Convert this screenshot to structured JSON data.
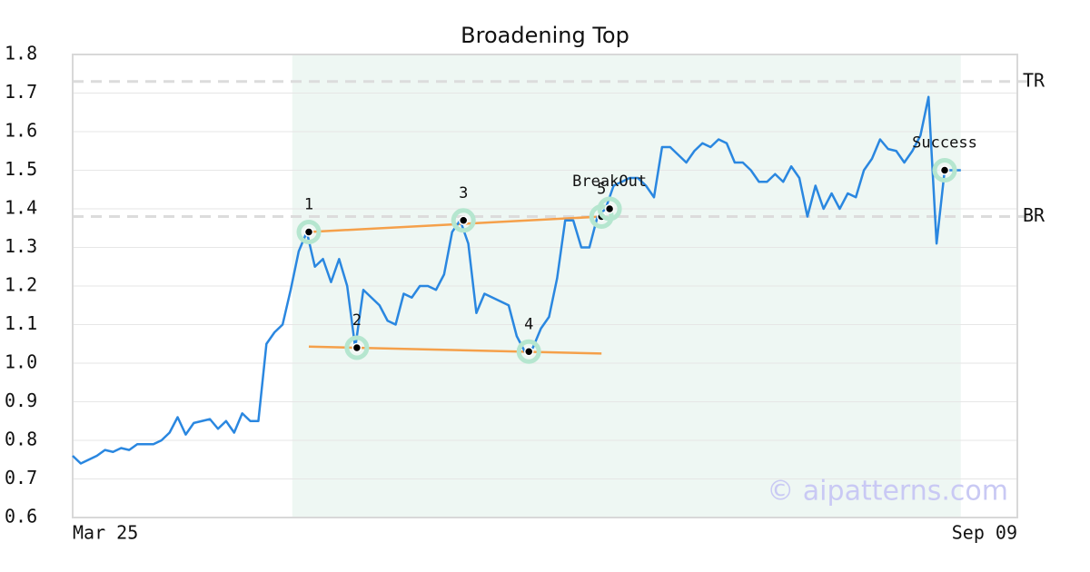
{
  "chart_data": {
    "type": "line",
    "title": "Broadening Top",
    "x": [
      0,
      1,
      2,
      3,
      4,
      5,
      6,
      7,
      8,
      9,
      10,
      11,
      12,
      13,
      14,
      15,
      16,
      17,
      18,
      19,
      20,
      21,
      22,
      23,
      24,
      25,
      26,
      27,
      28,
      29,
      30,
      31,
      32,
      33,
      34,
      35,
      36,
      37,
      38,
      39,
      40,
      41,
      42,
      43,
      44,
      45,
      46,
      47,
      48,
      49,
      50,
      51,
      52,
      53,
      54,
      55,
      56,
      57,
      58,
      59,
      60,
      61,
      62,
      63,
      64,
      65,
      66,
      67,
      68,
      69,
      70,
      71,
      72,
      73,
      74,
      75,
      76,
      77,
      78,
      79,
      80,
      81,
      82,
      83,
      84,
      85,
      86,
      87,
      88,
      89,
      90,
      91,
      92,
      93,
      94,
      95,
      96,
      97,
      98,
      99,
      100,
      101,
      102,
      103,
      104,
      105,
      106,
      107,
      108,
      109,
      110
    ],
    "series": [
      {
        "color": "#2a87e0",
        "values": [
          0.76,
          0.74,
          0.75,
          0.76,
          0.775,
          0.77,
          0.78,
          0.775,
          0.79,
          0.79,
          0.79,
          0.8,
          0.82,
          0.86,
          0.815,
          0.845,
          0.85,
          0.855,
          0.83,
          0.85,
          0.82,
          0.87,
          0.85,
          0.85,
          1.05,
          1.08,
          1.1,
          1.19,
          1.29,
          1.34,
          1.25,
          1.27,
          1.21,
          1.27,
          1.2,
          1.04,
          1.19,
          1.17,
          1.15,
          1.11,
          1.1,
          1.18,
          1.17,
          1.2,
          1.2,
          1.19,
          1.23,
          1.34,
          1.37,
          1.31,
          1.13,
          1.18,
          1.17,
          1.16,
          1.15,
          1.07,
          1.03,
          1.04,
          1.09,
          1.12,
          1.22,
          1.37,
          1.37,
          1.3,
          1.3,
          1.38,
          1.4,
          1.46,
          1.47,
          1.48,
          1.48,
          1.46,
          1.43,
          1.56,
          1.56,
          1.54,
          1.52,
          1.55,
          1.57,
          1.56,
          1.58,
          1.57,
          1.52,
          1.52,
          1.5,
          1.47,
          1.47,
          1.49,
          1.47,
          1.51,
          1.48,
          1.38,
          1.46,
          1.4,
          1.44,
          1.4,
          1.44,
          1.43,
          1.5,
          1.53,
          1.58,
          1.555,
          1.55,
          1.52,
          1.55,
          1.59,
          1.69,
          1.31,
          1.5,
          1.5,
          1.5
        ]
      }
    ],
    "xlim": [
      0,
      117
    ],
    "xticks": [
      {
        "value": 0,
        "label": "Mar 25"
      },
      {
        "value": 117,
        "label": "Sep 09"
      }
    ],
    "ylim": [
      0.6,
      1.8
    ],
    "yticks": [
      0.6,
      0.7,
      0.8,
      0.9,
      {
        "value": 1,
        "label": "1.0"
      },
      1.1,
      1.2,
      1.3,
      1.4,
      1.5,
      1.6,
      1.7,
      1.8
    ],
    "grid": true,
    "shaded_xlim": [
      27.2,
      110
    ],
    "ref_lines": [
      {
        "label": "TR",
        "value": 1.73
      },
      {
        "label": "BR",
        "value": 1.38
      }
    ],
    "trend_line_color": "#f5a04a",
    "trend_lines": [
      {
        "x": [
          29.25,
          65.5
        ],
        "values": [
          1.34,
          1.38
        ]
      },
      {
        "x": [
          29.25,
          65.5
        ],
        "values": [
          1.043,
          1.025
        ]
      }
    ],
    "annotations": [
      {
        "label": "1",
        "x": 29.25,
        "value": 1.34
      },
      {
        "label": "2",
        "x": 35.2,
        "value": 1.04
      },
      {
        "label": "3",
        "x": 48.4,
        "value": 1.37
      },
      {
        "label": "4",
        "x": 56.5,
        "value": 1.03
      },
      {
        "label": "5",
        "x": 65.5,
        "value": 1.38
      },
      {
        "label": "BreakOut",
        "x": 66.5,
        "value": 1.4
      },
      {
        "label": "Success",
        "x": 108,
        "value": 1.5
      }
    ],
    "watermark": "© aipatterns.com"
  }
}
